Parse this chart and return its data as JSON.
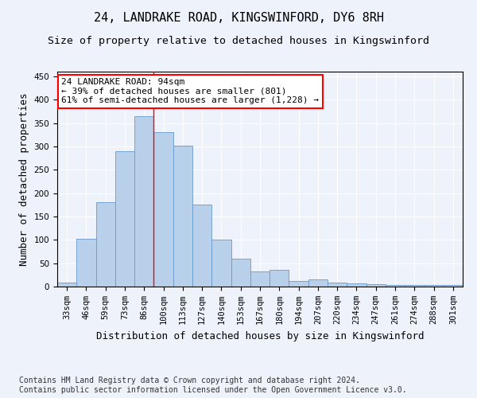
{
  "title": "24, LANDRAKE ROAD, KINGSWINFORD, DY6 8RH",
  "subtitle": "Size of property relative to detached houses in Kingswinford",
  "xlabel": "Distribution of detached houses by size in Kingswinford",
  "ylabel": "Number of detached properties",
  "categories": [
    "33sqm",
    "46sqm",
    "59sqm",
    "73sqm",
    "86sqm",
    "100sqm",
    "113sqm",
    "127sqm",
    "140sqm",
    "153sqm",
    "167sqm",
    "180sqm",
    "194sqm",
    "207sqm",
    "220sqm",
    "234sqm",
    "247sqm",
    "261sqm",
    "274sqm",
    "288sqm",
    "301sqm"
  ],
  "values": [
    8,
    102,
    181,
    290,
    365,
    330,
    302,
    176,
    100,
    59,
    32,
    35,
    12,
    15,
    8,
    6,
    5,
    4,
    4,
    4,
    3
  ],
  "bar_color": "#b8d0ea",
  "bar_edge_color": "#6699cc",
  "property_bin_index": 4,
  "annotation_line1": "24 LANDRAKE ROAD: 94sqm",
  "annotation_line2": "← 39% of detached houses are smaller (801)",
  "annotation_line3": "61% of semi-detached houses are larger (1,228) →",
  "annotation_box_color": "white",
  "annotation_box_edgecolor": "red",
  "vline_color": "red",
  "ylim": [
    0,
    460
  ],
  "yticks": [
    0,
    50,
    100,
    150,
    200,
    250,
    300,
    350,
    400,
    450
  ],
  "footer": "Contains HM Land Registry data © Crown copyright and database right 2024.\nContains public sector information licensed under the Open Government Licence v3.0.",
  "bg_color": "#edf2fb",
  "plot_bg_color": "#edf2fb",
  "grid_color": "white",
  "title_fontsize": 11,
  "subtitle_fontsize": 9.5,
  "ylabel_fontsize": 9,
  "xlabel_fontsize": 9,
  "tick_fontsize": 7.5,
  "annot_fontsize": 8,
  "footer_fontsize": 7
}
